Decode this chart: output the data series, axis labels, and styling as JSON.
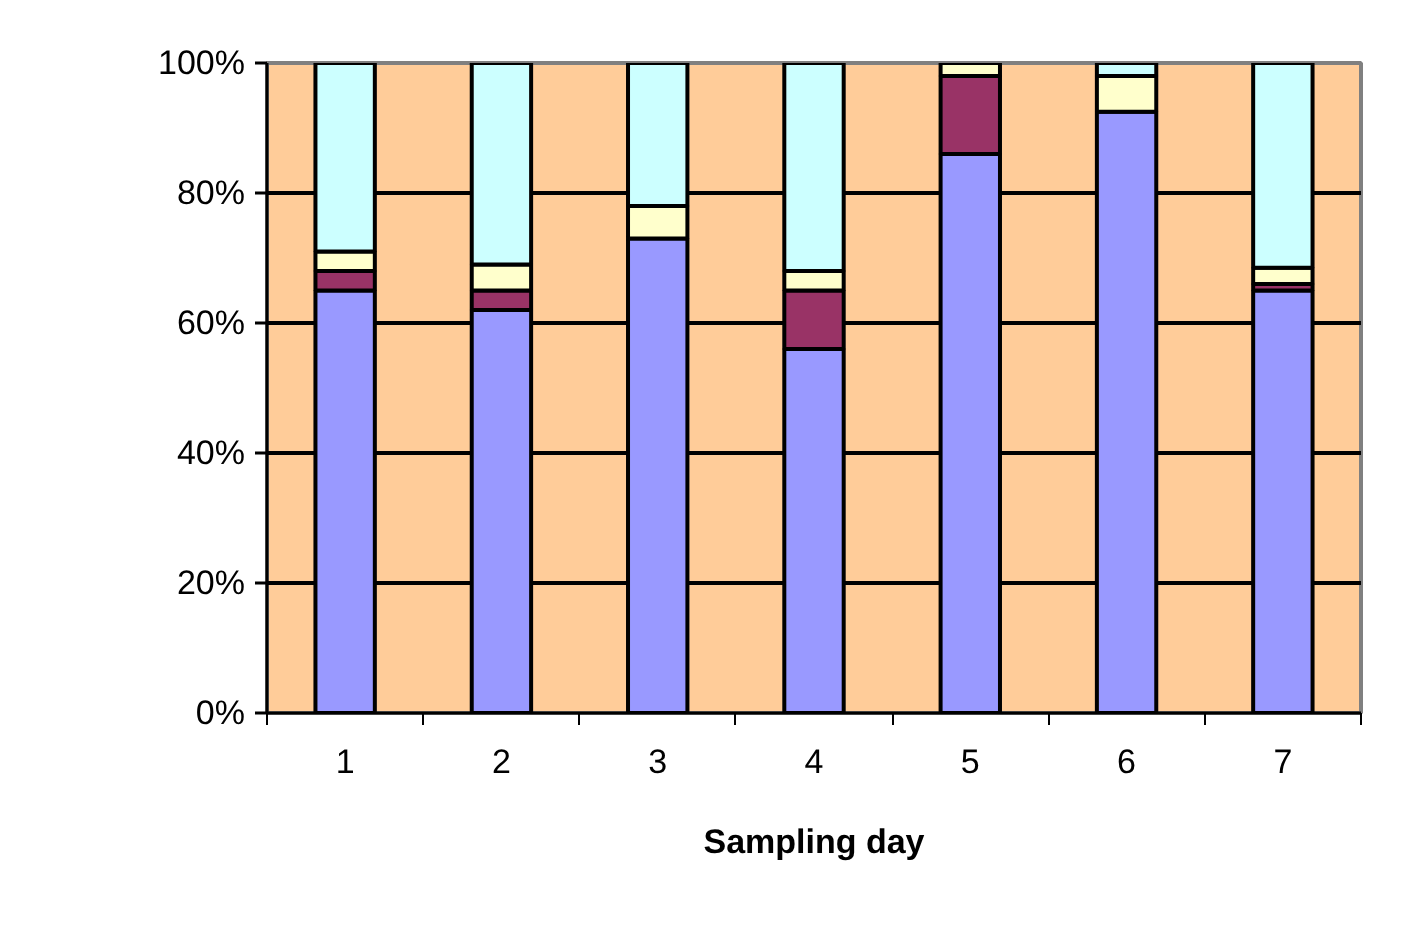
{
  "chart_data": {
    "type": "bar",
    "stacked": true,
    "xlabel": "Sampling day",
    "categories": [
      "1",
      "2",
      "3",
      "4",
      "5",
      "6",
      "7"
    ],
    "series": [
      {
        "color": "#9999ff",
        "values": [
          65,
          62,
          73,
          56,
          86,
          92.5,
          65
        ]
      },
      {
        "color": "#993366",
        "values": [
          3,
          3,
          0,
          9,
          12,
          0,
          1
        ]
      },
      {
        "color": "#ffffcc",
        "values": [
          3,
          4,
          5,
          3,
          2,
          5.5,
          2.5
        ]
      },
      {
        "color": "#ccffff",
        "values": [
          29,
          31,
          22,
          32,
          0,
          2,
          31.5
        ]
      }
    ],
    "ylim": [
      0,
      100
    ],
    "yticks": [
      {
        "value": 0,
        "label": "0%"
      },
      {
        "value": 20,
        "label": "20%"
      },
      {
        "value": 40,
        "label": "40%"
      },
      {
        "value": 60,
        "label": "60%"
      },
      {
        "value": 80,
        "label": "80%"
      },
      {
        "value": 100,
        "label": "100%"
      }
    ],
    "grid": "y"
  }
}
